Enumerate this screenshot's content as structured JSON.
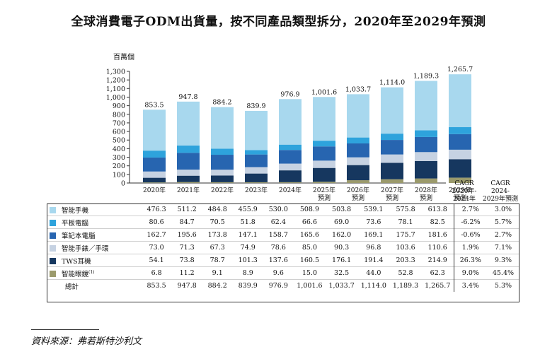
{
  "title": "全球消費電子ODM出貨量，按不同產品類型拆分，2020年至2029年預測",
  "unit_label": "百萬個",
  "source": "資料來源：弗若斯特沙利文",
  "chart_data": {
    "type": "bar",
    "stacked": true,
    "title": "全球消費電子ODM出貨量，按不同產品類型拆分，2020年至2029年預測",
    "ylabel": "百萬個",
    "ylim": [
      0,
      1300
    ],
    "yticks": [
      "0",
      "100",
      "200",
      "300",
      "400",
      "500",
      "600",
      "700",
      "800",
      "900",
      "1,000",
      "1,100",
      "1,200",
      "1,300"
    ],
    "ytick_values": [
      0,
      100,
      200,
      300,
      400,
      500,
      600,
      700,
      800,
      900,
      1000,
      1100,
      1200,
      1300
    ],
    "categories": [
      [
        "2020年"
      ],
      [
        "2021年"
      ],
      [
        "2022年"
      ],
      [
        "2023年"
      ],
      [
        "2024年"
      ],
      [
        "2025年",
        "預測"
      ],
      [
        "2026年",
        "預測"
      ],
      [
        "2027年",
        "預測"
      ],
      [
        "2028年",
        "預測"
      ],
      [
        "2029年",
        "預測"
      ]
    ],
    "cagr_headers": [
      [
        "CAGR",
        "2020年-",
        "2024年"
      ],
      [
        "CAGR",
        "2024-",
        "2029年預測"
      ]
    ],
    "series": [
      {
        "name": "智能手機",
        "color": "#a8d8ee",
        "values": [
          476.3,
          511.2,
          484.8,
          455.9,
          530.0,
          508.9,
          503.8,
          539.1,
          575.8,
          613.8
        ],
        "labels": [
          "476.3",
          "511.2",
          "484.8",
          "455.9",
          "530.0",
          "508.9",
          "503.8",
          "539.1",
          "575.8",
          "613.8"
        ],
        "cagr": [
          "2.7%",
          "3.0%"
        ]
      },
      {
        "name": "平板電腦",
        "color": "#2ea3dc",
        "values": [
          80.6,
          84.7,
          70.5,
          51.8,
          62.4,
          66.6,
          69.0,
          73.6,
          78.1,
          82.5
        ],
        "labels": [
          "80.6",
          "84.7",
          "70.5",
          "51.8",
          "62.4",
          "66.6",
          "69.0",
          "73.6",
          "78.1",
          "82.5"
        ],
        "cagr": [
          "-6.2%",
          "5.7%"
        ]
      },
      {
        "name": "筆記本電腦",
        "color": "#2765b0",
        "values": [
          162.7,
          195.6,
          173.8,
          147.1,
          158.7,
          165.6,
          162.0,
          169.1,
          175.7,
          181.6
        ],
        "labels": [
          "162.7",
          "195.6",
          "173.8",
          "147.1",
          "158.7",
          "165.6",
          "162.0",
          "169.1",
          "175.7",
          "181.6"
        ],
        "cagr": [
          "-0.6%",
          "2.7%"
        ]
      },
      {
        "name": "智能手錶／手環",
        "color": "#c6d2e2",
        "values": [
          73.0,
          71.3,
          67.3,
          74.9,
          78.6,
          85.0,
          90.3,
          96.8,
          103.6,
          110.6
        ],
        "labels": [
          "73.0",
          "71.3",
          "67.3",
          "74.9",
          "78.6",
          "85.0",
          "90.3",
          "96.8",
          "103.6",
          "110.6"
        ],
        "cagr": [
          "1.9%",
          "7.1%"
        ]
      },
      {
        "name": "TWS耳機",
        "color": "#16375f",
        "values": [
          54.1,
          73.8,
          78.7,
          101.3,
          137.6,
          160.5,
          176.1,
          191.4,
          203.3,
          214.9
        ],
        "labels": [
          "54.1",
          "73.8",
          "78.7",
          "101.3",
          "137.6",
          "160.5",
          "176.1",
          "191.4",
          "203.3",
          "214.9"
        ],
        "cagr": [
          "26.3%",
          "9.3%"
        ]
      },
      {
        "name": "智能眼鏡",
        "sup": "(1)",
        "color": "#9b9a6c",
        "values": [
          6.8,
          11.2,
          9.1,
          8.9,
          9.6,
          15.0,
          32.5,
          44.0,
          52.8,
          62.3
        ],
        "labels": [
          "6.8",
          "11.2",
          "9.1",
          "8.9",
          "9.6",
          "15.0",
          "32.5",
          "44.0",
          "52.8",
          "62.3"
        ],
        "cagr": [
          "9.0%",
          "45.4%"
        ]
      }
    ],
    "totals": {
      "name": "總計",
      "values": [
        853.5,
        947.8,
        884.2,
        839.9,
        976.9,
        1001.6,
        1033.7,
        1114.0,
        1189.3,
        1265.7
      ],
      "labels": [
        "853.5",
        "947.8",
        "884.2",
        "839.9",
        "976.9",
        "1,001.6",
        "1,033.7",
        "1,114.0",
        "1,189.3",
        "1,265.7"
      ],
      "cagr": [
        "3.4%",
        "5.3%"
      ]
    }
  }
}
